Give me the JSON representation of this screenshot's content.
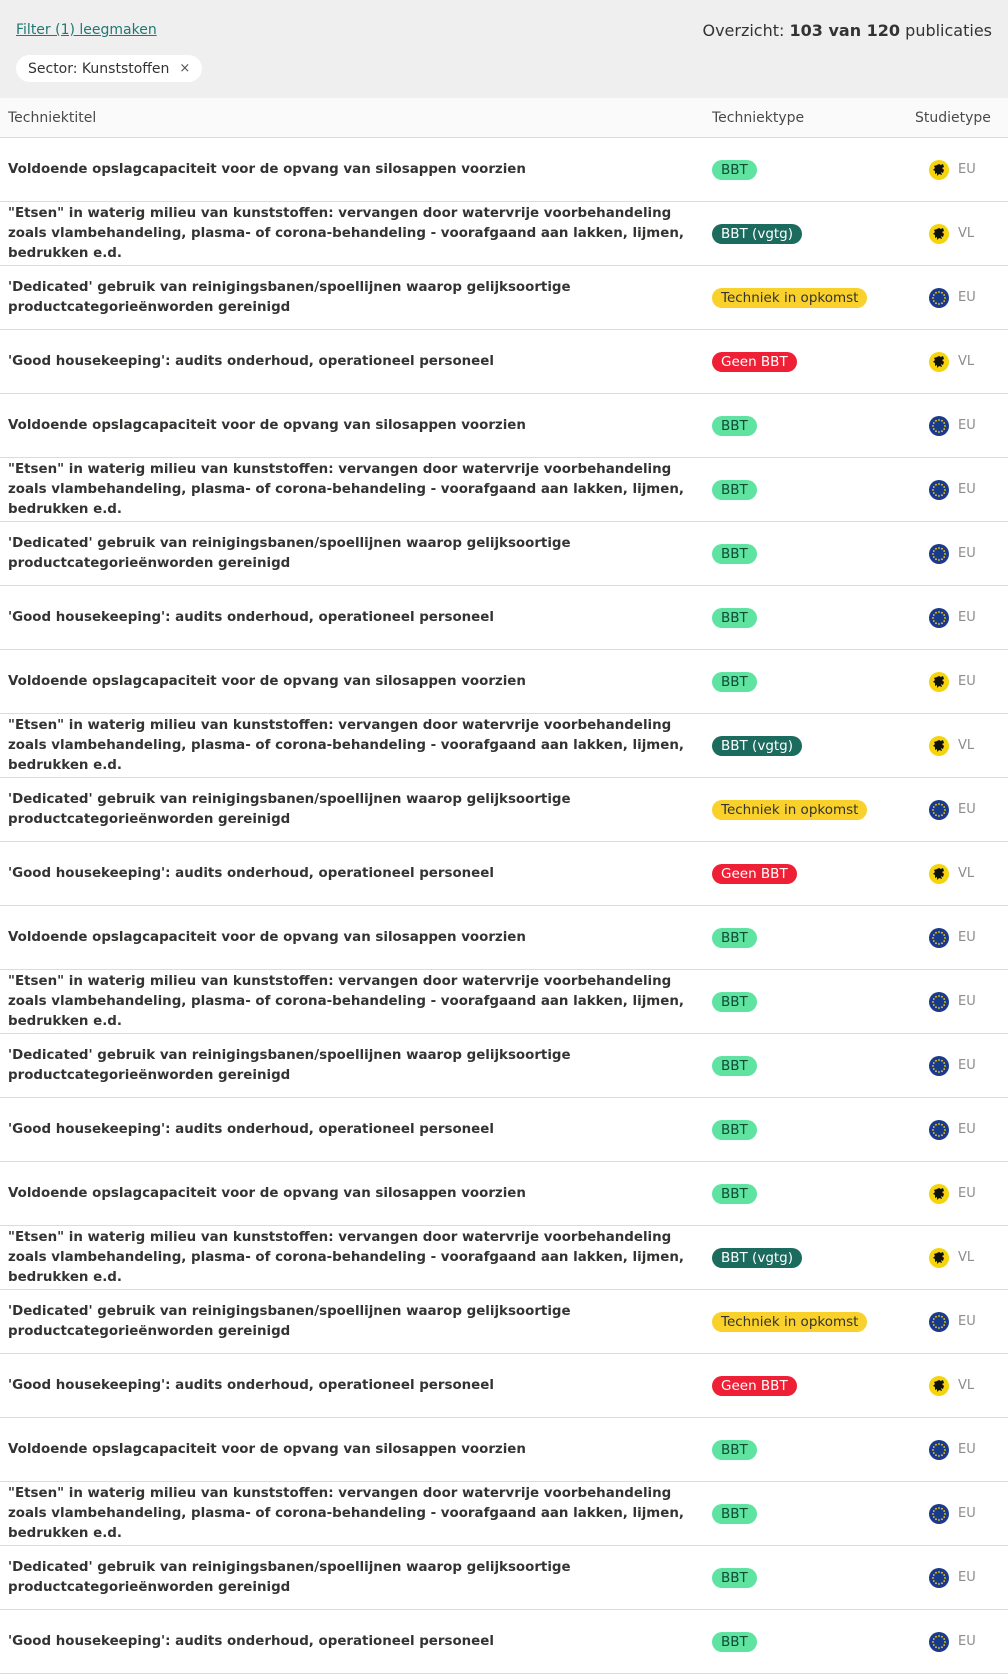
{
  "filter": {
    "clear_label": "Filter (1) leegmaken",
    "chip_label": "Sector: Kunststoffen",
    "chip_close": "×"
  },
  "overview": {
    "prefix": "Overzicht:",
    "shown": "103 van 120",
    "suffix": "publicaties"
  },
  "table": {
    "headers": {
      "title": "Techniektitel",
      "type": "Techniektype",
      "study": "Studietype"
    },
    "rows": [
      {
        "title": "Voldoende opslagcapaciteit voor de opvang van silosappen voorzien",
        "type": "BBT",
        "style": "bbt",
        "flag": "vl",
        "study": "EU"
      },
      {
        "title": "\"Etsen\" in waterig milieu van kunststoffen: vervangen door watervrije voorbehandeling zoals vlambehandeling, plasma- of corona-behandeling - voorafgaand aan lakken, lijmen, bedrukken e.d.",
        "type": "BBT (vgtg)",
        "style": "vgtg",
        "flag": "vl",
        "study": "VL"
      },
      {
        "title": "'Dedicated' gebruik van reinigingsbanen/spoellijnen waarop gelijksoortige productcategorieënworden gereinigd",
        "type": "Techniek in opkomst",
        "style": "opk",
        "flag": "eu",
        "study": "EU"
      },
      {
        "title": "'Good housekeeping': audits onderhoud, operationeel personeel",
        "type": "Geen BBT",
        "style": "geen",
        "flag": "vl",
        "study": "VL"
      },
      {
        "title": "Voldoende opslagcapaciteit voor de opvang van silosappen voorzien",
        "type": "BBT",
        "style": "bbt",
        "flag": "eu",
        "study": "EU"
      },
      {
        "title": "\"Etsen\" in waterig milieu van kunststoffen: vervangen door watervrije voorbehandeling zoals vlambehandeling, plasma- of corona-behandeling - voorafgaand aan lakken, lijmen, bedrukken e.d.",
        "type": "BBT",
        "style": "bbt",
        "flag": "eu",
        "study": "EU"
      },
      {
        "title": "'Dedicated' gebruik van reinigingsbanen/spoellijnen waarop gelijksoortige productcategorieënworden gereinigd",
        "type": "BBT",
        "style": "bbt",
        "flag": "eu",
        "study": "EU"
      },
      {
        "title": "'Good housekeeping': audits onderhoud, operationeel personeel",
        "type": "BBT",
        "style": "bbt",
        "flag": "eu",
        "study": "EU"
      },
      {
        "title": "Voldoende opslagcapaciteit voor de opvang van silosappen voorzien",
        "type": "BBT",
        "style": "bbt",
        "flag": "vl",
        "study": "EU"
      },
      {
        "title": "\"Etsen\" in waterig milieu van kunststoffen: vervangen door watervrije voorbehandeling zoals vlambehandeling, plasma- of corona-behandeling - voorafgaand aan lakken, lijmen, bedrukken e.d.",
        "type": "BBT (vgtg)",
        "style": "vgtg",
        "flag": "vl",
        "study": "VL"
      },
      {
        "title": "'Dedicated' gebruik van reinigingsbanen/spoellijnen waarop gelijksoortige productcategorieënworden gereinigd",
        "type": "Techniek in opkomst",
        "style": "opk",
        "flag": "eu",
        "study": "EU"
      },
      {
        "title": "'Good housekeeping': audits onderhoud, operationeel personeel",
        "type": "Geen BBT",
        "style": "geen",
        "flag": "vl",
        "study": "VL"
      },
      {
        "title": "Voldoende opslagcapaciteit voor de opvang van silosappen voorzien",
        "type": "BBT",
        "style": "bbt",
        "flag": "eu",
        "study": "EU"
      },
      {
        "title": "\"Etsen\" in waterig milieu van kunststoffen: vervangen door watervrije voorbehandeling zoals vlambehandeling, plasma- of corona-behandeling - voorafgaand aan lakken, lijmen, bedrukken e.d.",
        "type": "BBT",
        "style": "bbt",
        "flag": "eu",
        "study": "EU"
      },
      {
        "title": "'Dedicated' gebruik van reinigingsbanen/spoellijnen waarop gelijksoortige productcategorieënworden gereinigd",
        "type": "BBT",
        "style": "bbt",
        "flag": "eu",
        "study": "EU"
      },
      {
        "title": "'Good housekeeping': audits onderhoud, operationeel personeel",
        "type": "BBT",
        "style": "bbt",
        "flag": "eu",
        "study": "EU"
      },
      {
        "title": "Voldoende opslagcapaciteit voor de opvang van silosappen voorzien",
        "type": "BBT",
        "style": "bbt",
        "flag": "vl",
        "study": "EU"
      },
      {
        "title": "\"Etsen\" in waterig milieu van kunststoffen: vervangen door watervrije voorbehandeling zoals vlambehandeling, plasma- of corona-behandeling - voorafgaand aan lakken, lijmen, bedrukken e.d.",
        "type": "BBT (vgtg)",
        "style": "vgtg",
        "flag": "vl",
        "study": "VL"
      },
      {
        "title": "'Dedicated' gebruik van reinigingsbanen/spoellijnen waarop gelijksoortige productcategorieënworden gereinigd",
        "type": "Techniek in opkomst",
        "style": "opk",
        "flag": "eu",
        "study": "EU"
      },
      {
        "title": "'Good housekeeping': audits onderhoud, operationeel personeel",
        "type": "Geen BBT",
        "style": "geen",
        "flag": "vl",
        "study": "VL"
      },
      {
        "title": "Voldoende opslagcapaciteit voor de opvang van silosappen voorzien",
        "type": "BBT",
        "style": "bbt",
        "flag": "eu",
        "study": "EU"
      },
      {
        "title": "\"Etsen\" in waterig milieu van kunststoffen: vervangen door watervrije voorbehandeling zoals vlambehandeling, plasma- of corona-behandeling - voorafgaand aan lakken, lijmen, bedrukken e.d.",
        "type": "BBT",
        "style": "bbt",
        "flag": "eu",
        "study": "EU"
      },
      {
        "title": "'Dedicated' gebruik van reinigingsbanen/spoellijnen waarop gelijksoortige productcategorieënworden gereinigd",
        "type": "BBT",
        "style": "bbt",
        "flag": "eu",
        "study": "EU"
      },
      {
        "title": "'Good housekeeping': audits onderhoud, operationeel personeel",
        "type": "BBT",
        "style": "bbt",
        "flag": "eu",
        "study": "EU"
      }
    ]
  },
  "icons": {
    "vl": "flanders-lion-icon",
    "eu": "eu-flag-icon"
  },
  "colors": {
    "bbt": "#5ee3a1",
    "vgtg": "#1b6b5e",
    "opkomst": "#f9d12a",
    "geen": "#ef1f35",
    "link": "#1f7872",
    "eu_blue": "#1b3a8c",
    "flanders_yellow": "#f6d40a"
  }
}
